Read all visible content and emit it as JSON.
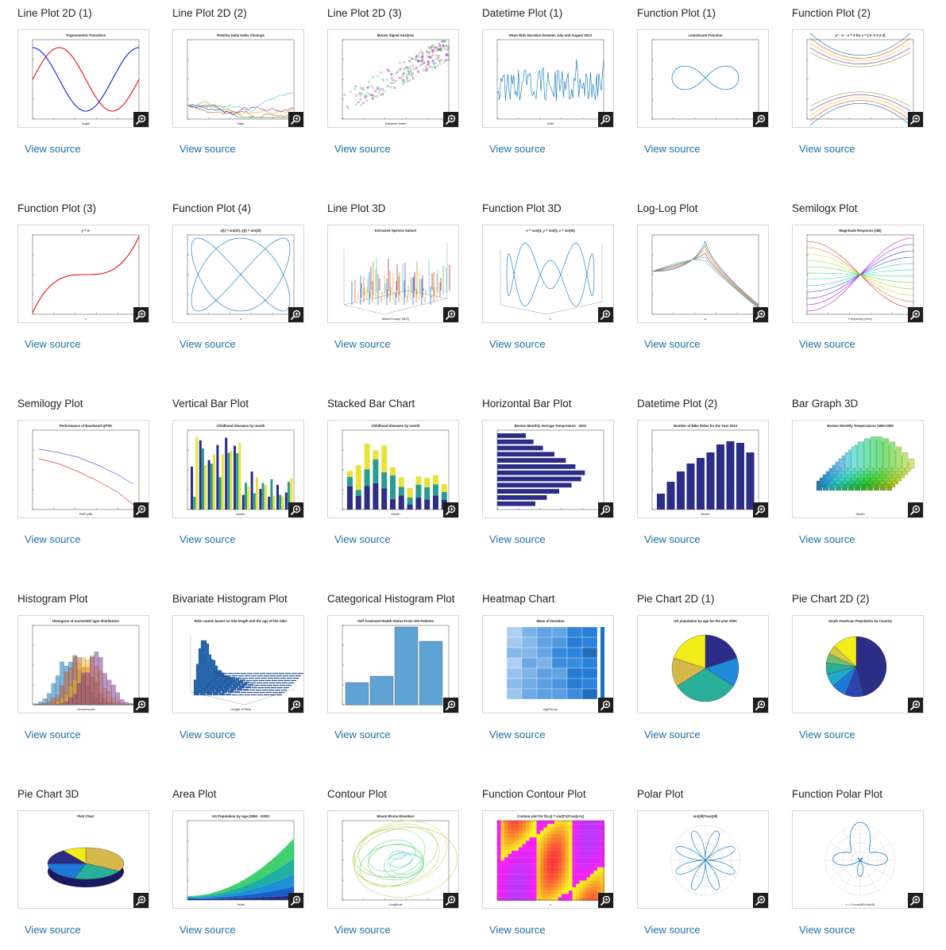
{
  "link_label": "View source",
  "cards": [
    {
      "title": "Line Plot 2D (1)",
      "plot_title": "Trigonometric Functions",
      "xlabel": "angle"
    },
    {
      "title": "Line Plot 2D (2)",
      "plot_title": "Relative Daily Index Closings",
      "xlabel": "Date"
    },
    {
      "title": "Line Plot 2D (3)",
      "plot_title": "Mouse Signal Analysis",
      "xlabel": "Distance Index"
    },
    {
      "title": "Datetime Plot (1)",
      "plot_title": "Mean Ride Duration between July and August 2013",
      "xlabel": "Date"
    },
    {
      "title": "Function Plot (1)",
      "plot_title": "Lemniscate Function",
      "xlabel": ""
    },
    {
      "title": "Function Plot (2)",
      "plot_title": "y² - x³ - c = 0 for c = [-4 -2 0 2 4]",
      "xlabel": ""
    },
    {
      "title": "Function Plot (3)",
      "plot_title": "y = x³",
      "xlabel": "x"
    },
    {
      "title": "Function Plot (4)",
      "plot_title": "x(t) = sin(2t), y(t) = sin(3t)",
      "xlabel": "x"
    },
    {
      "title": "Line Plot 3D",
      "plot_title": "Extracted Spectra Subset",
      "xlabel": "Mass/Charge (M/Z)"
    },
    {
      "title": "Function Plot 3D",
      "plot_title": "x = cos(t), y = sin(t), z = sin(5t)",
      "xlabel": "x"
    },
    {
      "title": "Log-Log Plot",
      "plot_title": "",
      "xlabel": "ω"
    },
    {
      "title": "Semilogx Plot",
      "plot_title": "Magnitude Response (dB)",
      "xlabel": "Frequency (kHz)"
    },
    {
      "title": "Semilogy Plot",
      "plot_title": "Performance of Baseband QPSK",
      "xlabel": "SNR (dB)"
    },
    {
      "title": "Vertical Bar Plot",
      "plot_title": "Childhood diseases by month",
      "xlabel": "Month"
    },
    {
      "title": "Stacked Bar Chart",
      "plot_title": "Childhood diseases by month",
      "xlabel": "Month"
    },
    {
      "title": "Horizontal Bar Plot",
      "plot_title": "Boston Monthly Average Temperature - 2001",
      "xlabel": ""
    },
    {
      "title": "Datetime Plot (2)",
      "plot_title": "Number of Bike Rides for the Year 2013",
      "xlabel": "Month"
    },
    {
      "title": "Bar Graph 3D",
      "plot_title": "Boston Monthly Temperatures 1900-2000",
      "xlabel": "Month"
    },
    {
      "title": "Histogram Plot",
      "plot_title": "Histogram of nucleotide type distribution",
      "xlabel": "Occurrences"
    },
    {
      "title": "Bivariate Histogram Plot",
      "plot_title": "Ride counts based on ride length and the age of the rider",
      "xlabel": "Length of Ride"
    },
    {
      "title": "Categorical Histogram Plot",
      "plot_title": "Self Assessed Health Status From 100 Patients",
      "xlabel": ""
    },
    {
      "title": "Heatmap Chart",
      "plot_title": "Mean of Duration",
      "xlabel": "AgeGroup"
    },
    {
      "title": "Pie Chart 2D (1)",
      "plot_title": "US population by age for the year 2000",
      "xlabel": ""
    },
    {
      "title": "Pie Chart 2D (2)",
      "plot_title": "South American Population by Country",
      "xlabel": ""
    },
    {
      "title": "Pie Chart 3D",
      "plot_title": "Pie3 Chart",
      "xlabel": ""
    },
    {
      "title": "Area Plot",
      "plot_title": "US Population by Age (1860 - 2000)",
      "xlabel": "Years"
    },
    {
      "title": "Contour Plot",
      "plot_title": "Mount Bruno Elevation",
      "xlabel": "Longitude"
    },
    {
      "title": "Function Contour Plot",
      "plot_title": "Contour plot for f(x,y) = sin(3*x)*cos(x+y)",
      "xlabel": "x"
    },
    {
      "title": "Polar Plot",
      "plot_title": "sin(2θ)*cos(2θ)",
      "xlabel": ""
    },
    {
      "title": "Function Polar Plot",
      "plot_title": "",
      "xlabel": "r = 1+cos(4θ)+sin(θ)"
    }
  ],
  "icons": {
    "zoom": "zoom-in-icon"
  },
  "colors": {
    "link": "#1a6fa8",
    "zoom_bg": "#1e1e1e",
    "parula_blue": "#0072bd",
    "parula_red": "#d95319",
    "navy": "#2b2d86"
  }
}
